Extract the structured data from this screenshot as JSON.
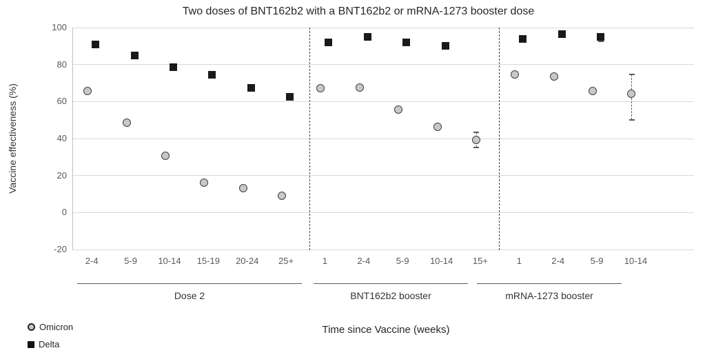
{
  "title": "Two doses of BNT162b2 with a BNT162b2 or mRNA-1273 booster dose",
  "axes": {
    "y_label": "Vaccine effectiveness (%)",
    "x_label": "Time since Vaccine (weeks)"
  },
  "legend": {
    "items": [
      {
        "label": "Omicron",
        "marker": "circle-icon"
      },
      {
        "label": "Delta",
        "marker": "square-icon"
      }
    ]
  },
  "colors": {
    "omicron_fill": "#c8c8c8",
    "omicron_stroke": "#3d3d3d",
    "delta_fill": "#1a1a1a",
    "gridline": "#d9d9d9",
    "axis_line": "#bfbfbf",
    "divider": "#404040",
    "error_bar": "#595959",
    "tick_text": "#595959",
    "text": "#262626"
  },
  "chart_data": {
    "type": "scatter",
    "title": "Two doses of BNT162b2 with a BNT162b2 or mRNA-1273 booster dose",
    "xlabel": "Time since Vaccine (weeks)",
    "ylabel": "Vaccine effectiveness (%)",
    "ylim": [
      -20,
      100
    ],
    "yticks": [
      100,
      80,
      60,
      40,
      20,
      0,
      -20
    ],
    "grid": true,
    "legend_position": "bottom-left",
    "groups": [
      {
        "label": "Dose 2",
        "categories": [
          "2-4",
          "5-9",
          "10-14",
          "15-19",
          "20-24",
          "25+"
        ],
        "series": [
          {
            "name": "Omicron",
            "values": [
              65.5,
              48.5,
              30.5,
              16,
              13,
              9
            ]
          },
          {
            "name": "Delta",
            "values": [
              91,
              85,
              78.5,
              74.5,
              67.5,
              62.5
            ]
          }
        ]
      },
      {
        "label": "BNT162b2 booster",
        "categories": [
          "1",
          "2-4",
          "5-9",
          "10-14",
          "15+"
        ],
        "series": [
          {
            "name": "Omicron",
            "values": [
              67,
              67.5,
              55.5,
              46,
              39
            ],
            "error_bars": {
              "4": [
                35,
                43.5
              ]
            }
          },
          {
            "name": "Delta",
            "values": [
              92,
              95,
              92,
              90,
              null
            ]
          }
        ]
      },
      {
        "label": "mRNA-1273 booster",
        "categories": [
          "1",
          "2-4",
          "5-9",
          "10-14"
        ],
        "series": [
          {
            "name": "Omicron",
            "values": [
              74.5,
              73.5,
              65.5,
              64
            ],
            "error_bars": {
              "3": [
                50,
                74.5
              ]
            }
          },
          {
            "name": "Delta",
            "values": [
              94,
              96.5,
              95,
              null
            ],
            "error_bars": {
              "2": [
                92.5,
                96.5
              ]
            }
          }
        ]
      }
    ]
  }
}
